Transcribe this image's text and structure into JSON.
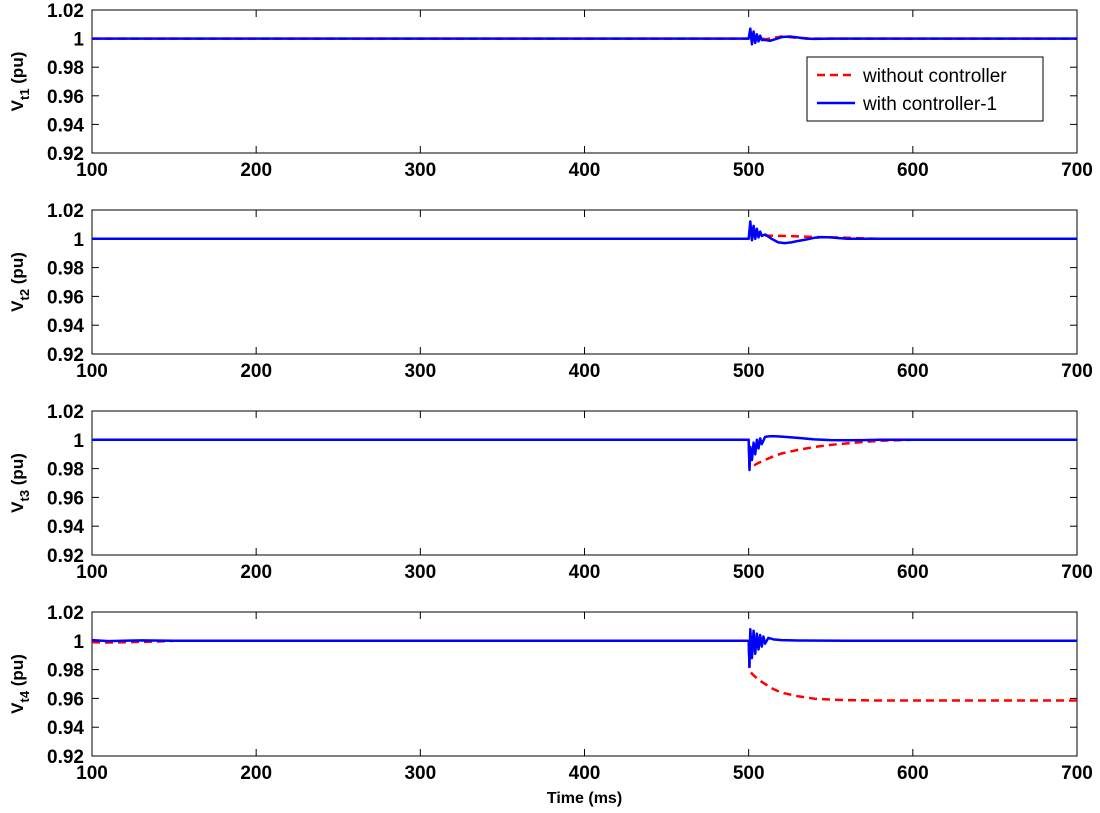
{
  "chart_data": [
    {
      "type": "line",
      "ylabel": "V",
      "ylabel_sub": "t1",
      "ylabel_unit": " (pu)",
      "xlim": [
        100,
        700
      ],
      "ylim": [
        0.92,
        1.02
      ],
      "xticks": [
        100,
        200,
        300,
        400,
        500,
        600,
        700
      ],
      "yticks": [
        0.92,
        0.94,
        0.96,
        0.98,
        1,
        1.02
      ],
      "xtick_labels": [
        "100",
        "200",
        "300",
        "400",
        "500",
        "600",
        "700"
      ],
      "ytick_labels": [
        "0.92",
        "0.94",
        "0.96",
        "0.98",
        "1",
        "1.02"
      ],
      "grid": false,
      "legend": {
        "placement": "top-right",
        "entries": [
          "without controller",
          "with controller-1"
        ]
      },
      "series": [
        {
          "name": "without controller",
          "color": "#ff0000",
          "style": "dashed",
          "x": [
            100,
            500,
            501,
            503,
            506,
            510,
            515,
            520,
            525,
            530,
            540,
            550,
            560,
            700
          ],
          "y": [
            1,
            1,
            1.004,
            1.002,
            1.001,
            0.9995,
            1.0005,
            1.0015,
            1.001,
            1.0005,
            1.0,
            1.0,
            1.0,
            1.0
          ]
        },
        {
          "name": "with controller-1",
          "color": "#0000ff",
          "style": "solid",
          "x": [
            100,
            500,
            501,
            502,
            503,
            504,
            505,
            506,
            507,
            508,
            510,
            513,
            516,
            520,
            525,
            530,
            535,
            540,
            550,
            560,
            700
          ],
          "y": [
            1,
            1,
            1.007,
            0.996,
            1.005,
            0.997,
            1.003,
            0.998,
            1.002,
            0.999,
            0.999,
            0.9985,
            0.9995,
            1.001,
            1.0015,
            1.0008,
            1.0,
            0.9998,
            1.0,
            1.0,
            1.0
          ]
        }
      ]
    },
    {
      "type": "line",
      "ylabel": "V",
      "ylabel_sub": "t2",
      "ylabel_unit": " (pu)",
      "xlim": [
        100,
        700
      ],
      "ylim": [
        0.92,
        1.02
      ],
      "xticks": [
        100,
        200,
        300,
        400,
        500,
        600,
        700
      ],
      "yticks": [
        0.92,
        0.94,
        0.96,
        0.98,
        1,
        1.02
      ],
      "xtick_labels": [
        "100",
        "200",
        "300",
        "400",
        "500",
        "600",
        "700"
      ],
      "ytick_labels": [
        "0.92",
        "0.94",
        "0.96",
        "0.98",
        "1",
        "1.02"
      ],
      "grid": false,
      "series": [
        {
          "name": "without controller",
          "color": "#ff0000",
          "style": "dashed",
          "x": [
            100,
            500,
            501,
            505,
            510,
            520,
            530,
            540,
            550,
            560,
            570,
            580,
            700
          ],
          "y": [
            1,
            1,
            1.003,
            1.0025,
            1.0023,
            1.002,
            1.0017,
            1.0013,
            1.001,
            1.0007,
            1.0003,
            1.0,
            1.0
          ]
        },
        {
          "name": "with controller-1",
          "color": "#0000ff",
          "style": "solid",
          "x": [
            100,
            500,
            501,
            502,
            503,
            504,
            505,
            506,
            507,
            508,
            510,
            514,
            518,
            522,
            526,
            530,
            535,
            540,
            545,
            550,
            555,
            560,
            570,
            700
          ],
          "y": [
            1,
            1,
            1.012,
            0.999,
            1.009,
            1.0,
            1.007,
            1.001,
            1.005,
            1.002,
            1.003,
            1.0,
            0.9975,
            0.997,
            0.9975,
            0.9985,
            0.9995,
            1.0007,
            1.0012,
            1.001,
            1.0005,
            1.0,
            1.0,
            1.0
          ]
        }
      ]
    },
    {
      "type": "line",
      "ylabel": "V",
      "ylabel_sub": "t3",
      "ylabel_unit": " (pu)",
      "xlim": [
        100,
        700
      ],
      "ylim": [
        0.92,
        1.02
      ],
      "xticks": [
        100,
        200,
        300,
        400,
        500,
        600,
        700
      ],
      "yticks": [
        0.92,
        0.94,
        0.96,
        0.98,
        1,
        1.02
      ],
      "xtick_labels": [
        "100",
        "200",
        "300",
        "400",
        "500",
        "600",
        "700"
      ],
      "ytick_labels": [
        "0.92",
        "0.94",
        "0.96",
        "0.98",
        "1",
        "1.02"
      ],
      "grid": false,
      "series": [
        {
          "name": "without controller",
          "color": "#ff0000",
          "style": "dashed",
          "x": [
            100,
            500,
            500.5,
            503,
            506,
            510,
            515,
            520,
            530,
            540,
            550,
            560,
            570,
            580,
            600,
            700
          ],
          "y": [
            1,
            1,
            0.981,
            0.982,
            0.984,
            0.986,
            0.9885,
            0.9905,
            0.993,
            0.995,
            0.9965,
            0.9975,
            0.9985,
            0.9993,
            1.0,
            1.0
          ]
        },
        {
          "name": "with controller-1",
          "color": "#0000ff",
          "style": "solid",
          "x": [
            100,
            500,
            500.5,
            501,
            502,
            503,
            504,
            505,
            506,
            507,
            508,
            510,
            513,
            516,
            520,
            525,
            530,
            535,
            540,
            550,
            560,
            570,
            580,
            600,
            700
          ],
          "y": [
            1,
            1,
            0.979,
            0.995,
            0.986,
            0.998,
            0.99,
            1.0,
            0.994,
            1.001,
            0.997,
            1.002,
            1.0025,
            1.0025,
            1.0022,
            1.0018,
            1.0013,
            1.0008,
            1.0003,
            0.9998,
            0.9997,
            0.9998,
            1.0,
            1.0,
            1.0
          ]
        }
      ]
    },
    {
      "type": "line",
      "ylabel": "V",
      "ylabel_sub": "t4",
      "ylabel_unit": " (pu)",
      "xlabel": "Time (ms)",
      "xlim": [
        100,
        700
      ],
      "ylim": [
        0.92,
        1.02
      ],
      "xticks": [
        100,
        200,
        300,
        400,
        500,
        600,
        700
      ],
      "yticks": [
        0.92,
        0.94,
        0.96,
        0.98,
        1,
        1.02
      ],
      "xtick_labels": [
        "100",
        "200",
        "300",
        "400",
        "500",
        "600",
        "700"
      ],
      "ytick_labels": [
        "0.92",
        "0.94",
        "0.96",
        "0.98",
        "1",
        "1.02"
      ],
      "grid": false,
      "series": [
        {
          "name": "without controller",
          "color": "#ff0000",
          "style": "dashed",
          "x": [
            100,
            110,
            120,
            140,
            150,
            500,
            500.5,
            503,
            506,
            510,
            515,
            520,
            530,
            540,
            550,
            560,
            580,
            600,
            650,
            700
          ],
          "y": [
            0.999,
            0.9988,
            0.999,
            0.9995,
            1.0,
            1.0,
            0.979,
            0.976,
            0.973,
            0.97,
            0.9665,
            0.964,
            0.9615,
            0.9598,
            0.9592,
            0.9588,
            0.9585,
            0.9585,
            0.9585,
            0.9585
          ]
        },
        {
          "name": "with controller-1",
          "color": "#0000ff",
          "style": "solid",
          "x": [
            100,
            110,
            130,
            150,
            500,
            500.5,
            501,
            502,
            503,
            504,
            505,
            506,
            507,
            508,
            509,
            510,
            512,
            515,
            520,
            530,
            560,
            600,
            650,
            700
          ],
          "y": [
            1.0005,
            0.9998,
            1.0003,
            1.0,
            1.0,
            0.982,
            1.008,
            0.988,
            1.007,
            0.991,
            1.005,
            0.994,
            1.004,
            0.996,
            1.003,
            0.998,
            1.002,
            1.001,
            1.0005,
            1.0002,
            1.0,
            1.0,
            1.0,
            1.0
          ]
        }
      ]
    }
  ]
}
